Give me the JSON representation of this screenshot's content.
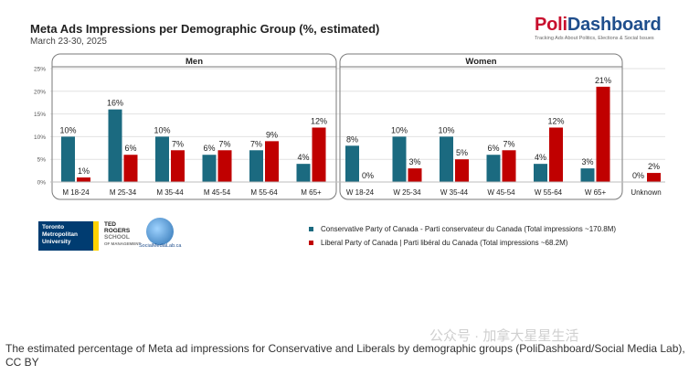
{
  "header": {
    "title": "Meta Ads Impressions per Demographic Group  (%, estimated)",
    "subtitle": "March 23-30, 2025"
  },
  "brand": {
    "name_part1": "Poli",
    "name_part2": "Dashboard",
    "tagline": "Tracking Ads About Politics, Elections & Social Issues"
  },
  "chart_data": {
    "type": "bar",
    "title": "Meta Ads Impressions per Demographic Group  (%, estimated)",
    "subtitle": "March 23-30, 2025",
    "ylim": [
      0,
      25
    ],
    "yticks": [
      "0%",
      "5%",
      "10%",
      "15%",
      "20%",
      "25%"
    ],
    "ytick_values": [
      0,
      5,
      10,
      15,
      20,
      25
    ],
    "groups": [
      {
        "label": "Men",
        "categories": [
          "M 18-24",
          "M 25-34",
          "M 35-44",
          "M 45-54",
          "M 55-64",
          "M 65+"
        ]
      },
      {
        "label": "Women",
        "categories": [
          "W 18-24",
          "W 25-34",
          "W 35-44",
          "W 45-54",
          "W 55-64",
          "W 65+"
        ]
      },
      {
        "label": "",
        "categories": [
          "Unknown"
        ]
      }
    ],
    "categories": [
      "M 18-24",
      "M 25-34",
      "M 35-44",
      "M 45-54",
      "M 55-64",
      "M 65+",
      "W 18-24",
      "W 25-34",
      "W 35-44",
      "W 45-54",
      "W 55-64",
      "W 65+",
      "Unknown"
    ],
    "series": [
      {
        "name": "Conservative Party of Canada - Parti conservateur du Canada (Total impressions ~170.8M)",
        "color": "#1b6a80",
        "values": [
          10,
          16,
          10,
          6,
          7,
          4,
          8,
          10,
          10,
          6,
          4,
          3,
          0
        ],
        "labels": [
          "10%",
          "16%",
          "10%",
          "6%",
          "7%",
          "4%",
          "8%",
          "10%",
          "10%",
          "6%",
          "4%",
          "3%",
          "0%"
        ]
      },
      {
        "name": "Liberal Party of Canada | Parti libéral du Canada (Total impressions ~68.2M)",
        "color": "#c00000",
        "values": [
          1,
          6,
          7,
          7,
          9,
          12,
          0,
          3,
          5,
          7,
          12,
          21,
          2
        ],
        "labels": [
          "1%",
          "6%",
          "7%",
          "7%",
          "9%",
          "12%",
          "0%",
          "3%",
          "5%",
          "7%",
          "12%",
          "21%",
          "2%"
        ]
      }
    ],
    "legend": "bottom-right"
  },
  "logos": {
    "tmu_text": "Toronto Metropolitan University",
    "ted_line1": "TED",
    "ted_line2": "ROGERS",
    "ted_line3": "SCHOOL",
    "ted_line4": "OF MANAGEMENT",
    "sml_text": "SocialMediaLab.ca"
  },
  "caption": "The estimated percentage of Meta ad impressions for Conservative and Liberals by demographic groups (PoliDashboard/Social Media Lab), CC BY",
  "watermark": "公众号 · 加拿大星星生活"
}
